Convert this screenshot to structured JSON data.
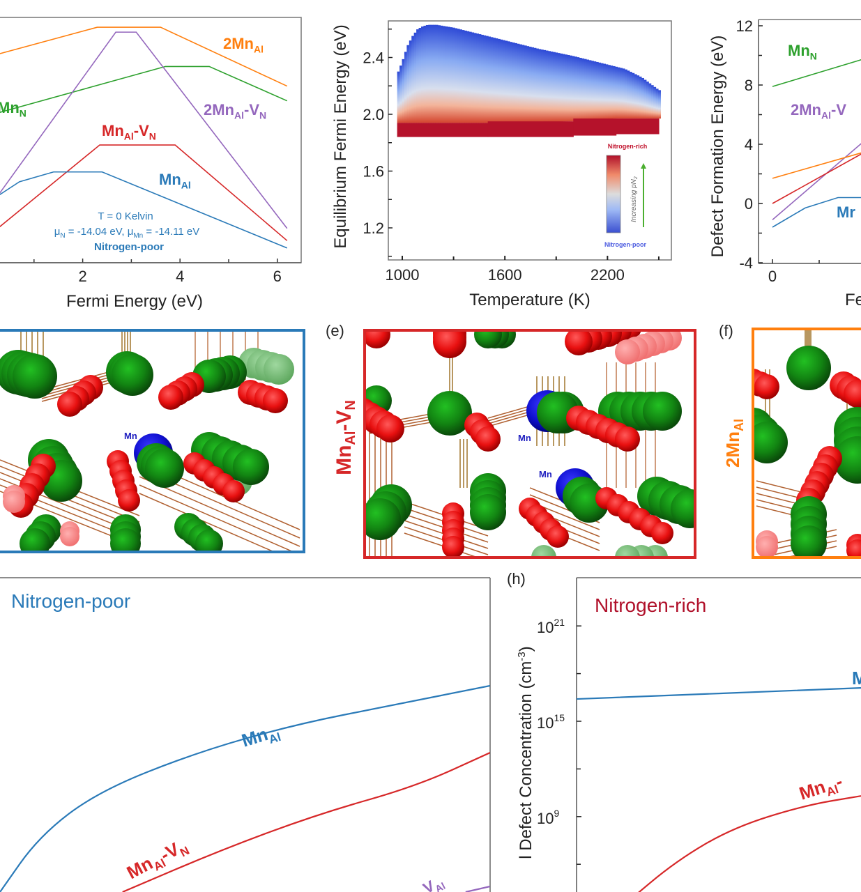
{
  "figure": {
    "panel_labels": [
      "(e)",
      "(f)",
      "(h)"
    ],
    "colors": {
      "MnAl": "#2a7ab8",
      "MnAl_VN": "#d62728",
      "2MnAl": "#ff7f0e",
      "MnN": "#2ca02c",
      "2MnAl_VN": "#9467bd",
      "nitrogen_rich": "#b0102a",
      "nitrogen_poor": "#3050c8",
      "N_atom": "#e81010",
      "Al_atom": "#148a14",
      "Mn_atom": "#1010d0"
    }
  },
  "chart_data": [
    {
      "id": "a",
      "type": "line",
      "title": "",
      "xlabel": "Fermi Energy (eV)",
      "ylabel": "",
      "xlim": [
        -0.3,
        6.5
      ],
      "x_ticks": [
        2,
        4,
        6
      ],
      "x_minor_ticks": [
        1,
        3,
        5
      ],
      "annotations": {
        "temperature": "T = 0 Kelvin",
        "chemical_potentials": "μN = -14.04 eV, μMn = -14.11 eV",
        "condition": "Nitrogen-poor"
      },
      "series": [
        {
          "name": "2MnAl",
          "label_main": "2Mn",
          "label_sub": "Al",
          "label_tail": "",
          "label_tail_sub": "",
          "color_key": "2MnAl",
          "points": [
            [
              -0.3,
              0.82
            ],
            [
              2.3,
              0.96
            ],
            [
              3.6,
              0.96
            ],
            [
              6.2,
              0.72
            ]
          ]
        },
        {
          "name": "MnN",
          "label_main": "Mn",
          "label_sub": "N",
          "label_tail": "",
          "label_tail_sub": "",
          "color_key": "MnN",
          "points": [
            [
              -0.3,
              0.58
            ],
            [
              3.7,
              0.8
            ],
            [
              4.6,
              0.8
            ],
            [
              6.2,
              0.66
            ]
          ]
        },
        {
          "name": "2MnAl-VN",
          "label_main": "2Mn",
          "label_sub": "Al",
          "label_tail": "-V",
          "label_tail_sub": "N",
          "color_key": "2MnAl_VN",
          "points": [
            [
              -0.3,
              0.12
            ],
            [
              2.68,
              0.94
            ],
            [
              3.1,
              0.94
            ],
            [
              6.2,
              0.14
            ]
          ]
        },
        {
          "name": "MnAl-VN",
          "label_main": "Mn",
          "label_sub": "Al",
          "label_tail": "-V",
          "label_tail_sub": "N",
          "color_key": "MnAl_VN",
          "points": [
            [
              -0.3,
              0.05
            ],
            [
              2.35,
              0.48
            ],
            [
              3.9,
              0.48
            ],
            [
              6.2,
              0.09
            ]
          ]
        },
        {
          "name": "MnAl",
          "label_main": "Mn",
          "label_sub": "Al",
          "label_tail": "",
          "label_tail_sub": "",
          "color_key": "MnAl",
          "points": [
            [
              -0.3,
              0.2
            ],
            [
              0.7,
              0.33
            ],
            [
              1.4,
              0.37
            ],
            [
              2.4,
              0.37
            ],
            [
              6.2,
              0.06
            ]
          ]
        }
      ]
    },
    {
      "id": "b",
      "type": "heatmap",
      "title": "",
      "xlabel": "Temperature (K)",
      "ylabel": "Equilibrium Fermi Energy (eV)",
      "xlim": [
        920,
        2570
      ],
      "ylim": [
        0.95,
        2.65
      ],
      "x_ticks": [
        1000,
        1600,
        2200
      ],
      "x_minor_ticks": [
        1300,
        1900,
        2500
      ],
      "y_ticks": [
        1.2,
        1.6,
        2.0,
        2.4
      ],
      "y_minor_ticks": [
        1.0,
        1.4,
        1.8,
        2.2,
        2.6
      ],
      "colorbar": {
        "top_label": "Nitrogen-rich",
        "bottom_label": "Nitrogen-poor",
        "side_label": "Increasing pN2"
      },
      "nitrogen_poor_upper_bound": {
        "T": [
          970,
          1000,
          1030,
          1060,
          1090,
          1120,
          1150,
          1200,
          1300,
          1400,
          1600,
          1800,
          2000,
          2200,
          2300,
          2400,
          2500
        ],
        "E": [
          2.28,
          2.37,
          2.48,
          2.55,
          2.6,
          2.62,
          2.63,
          2.63,
          2.61,
          2.58,
          2.52,
          2.46,
          2.41,
          2.35,
          2.32,
          2.26,
          2.17
        ]
      },
      "nitrogen_rich_band": {
        "T": [
          970,
          1500,
          2000,
          2250,
          2500
        ],
        "E_low": [
          1.84,
          1.84,
          1.85,
          1.86,
          1.86
        ],
        "E_high": [
          1.94,
          1.94,
          1.95,
          1.97,
          1.97
        ]
      }
    },
    {
      "id": "c",
      "type": "line",
      "title": "",
      "xlabel": "Fe",
      "ylabel": "Defect Formation Energy (eV)",
      "ylim": [
        -4,
        12
      ],
      "y_ticks": [
        -4,
        0,
        4,
        8,
        12
      ],
      "y_minor_ticks": [
        -2,
        2,
        6,
        10
      ],
      "x_ticks": [
        0
      ],
      "xlim": [
        -0.3,
        1.5
      ],
      "series": [
        {
          "name": "MnN",
          "color_key": "MnN",
          "label_main": "Mn",
          "label_sub": "N",
          "label_tail": "",
          "label_tail_sub": "",
          "points": [
            [
              0,
              7.9
            ],
            [
              1.5,
              9.9
            ]
          ]
        },
        {
          "name": "2MnAl-VN",
          "color_key": "2MnAl_VN",
          "label_main": "2Mn",
          "label_sub": "Al",
          "label_tail": "-V",
          "label_tail_sub": "",
          "points": [
            [
              0,
              -1.1
            ],
            [
              1.5,
              4.6
            ]
          ]
        },
        {
          "name": "2MnAl",
          "color_key": "2MnAl",
          "points": [
            [
              0,
              1.7
            ],
            [
              1.5,
              3.6
            ]
          ]
        },
        {
          "name": "MnAl-VN",
          "color_key": "MnAl_VN",
          "points": [
            [
              0,
              0.0
            ],
            [
              1.5,
              3.7
            ]
          ]
        },
        {
          "name": "MnAl",
          "color_key": "MnAl",
          "label_main": "Mr",
          "label_sub": "",
          "label_tail": "",
          "label_tail_sub": "",
          "points": [
            [
              0,
              -1.6
            ],
            [
              0.5,
              -0.3
            ],
            [
              1.0,
              0.4
            ],
            [
              1.5,
              0.4
            ]
          ]
        }
      ]
    },
    {
      "id": "g",
      "type": "line",
      "title": "Nitrogen-poor",
      "xlabel": "",
      "ylabel": "",
      "series": [
        {
          "name": "MnAl",
          "color_key": "MnAl",
          "label_main": "Mn",
          "label_sub": "Al",
          "points": [
            [
              0.0,
              0.0
            ],
            [
              0.08,
              0.2
            ],
            [
              0.2,
              0.36
            ],
            [
              0.4,
              0.5
            ],
            [
              0.6,
              0.6
            ],
            [
              0.8,
              0.67
            ],
            [
              1.0,
              0.74
            ]
          ]
        },
        {
          "name": "MnAl-VN",
          "color_key": "MnAl_VN",
          "label_main": "Mn",
          "label_sub": "Al",
          "label_tail": "-V",
          "label_tail_sub": "N",
          "points": [
            [
              0.25,
              0.0
            ],
            [
              0.45,
              0.15
            ],
            [
              0.65,
              0.28
            ],
            [
              0.85,
              0.38
            ],
            [
              1.0,
              0.5
            ]
          ]
        },
        {
          "name": "2MnAl-VN",
          "color_key": "2MnAl_VN",
          "label_main": "",
          "label_sub": "Al",
          "points": [
            [
              0.95,
              0.0
            ],
            [
              1.0,
              0.02
            ]
          ]
        }
      ]
    },
    {
      "id": "h",
      "type": "line",
      "title": "Nitrogen-rich",
      "xlabel": "",
      "ylabel": "l Defect Concentration (cm⁻³)",
      "y_scale": "log",
      "y_ticks": [
        "10^9",
        "10^15",
        "10^21"
      ],
      "y_tick_base": "10",
      "y_tick_exps": [
        "9",
        "15",
        "21"
      ],
      "y_minor_exps": [
        6,
        12,
        18
      ],
      "ylim_exp": [
        3.5,
        25
      ],
      "series": [
        {
          "name": "MnAl",
          "color_key": "MnAl",
          "label_main": "M",
          "label_sub": "",
          "points": [
            [
              0.0,
              16.4
            ],
            [
              1.0,
              17.1
            ]
          ]
        },
        {
          "name": "MnAl-VN",
          "color_key": "MnAl_VN",
          "label_main": "Mn",
          "label_sub": "Al",
          "label_tail": "-",
          "label_tail_sub": "",
          "points": [
            [
              0.17,
              3.5
            ],
            [
              0.35,
              6.2
            ],
            [
              0.55,
              8.3
            ],
            [
              0.8,
              9.7
            ],
            [
              1.0,
              10.3
            ]
          ]
        }
      ]
    }
  ],
  "structures": [
    {
      "id": "d",
      "frame_color_key": "MnAl",
      "side_label": "",
      "atom_labels": [
        "Mn"
      ]
    },
    {
      "id": "e",
      "frame_color_key": "MnAl_VN",
      "side_label_main": "Mn",
      "side_label_sub": "Al",
      "side_label_tail": "-V",
      "side_label_tail_sub": "N",
      "atom_labels": [
        "Mn",
        "Mn"
      ]
    },
    {
      "id": "f",
      "frame_color_key": "2MnAl",
      "side_label_main": "2Mn",
      "side_label_sub": "Al",
      "atom_labels": []
    }
  ]
}
